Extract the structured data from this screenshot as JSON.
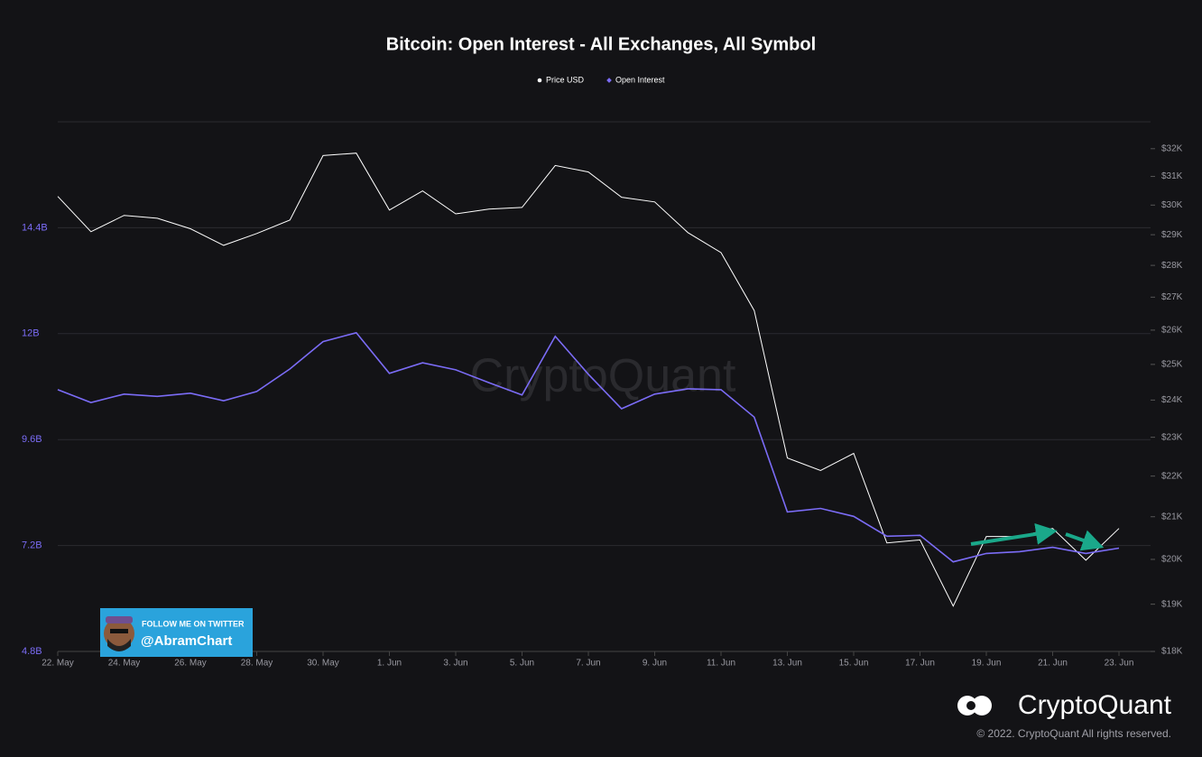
{
  "chart_data": {
    "type": "line",
    "title": "Bitcoin: Open Interest - All Exchanges, All Symbol",
    "categories": [
      "22. May",
      null,
      "24. May",
      null,
      "26. May",
      null,
      "28. May",
      null,
      "30. May",
      null,
      "1. Jun",
      null,
      "3. Jun",
      null,
      "5. Jun",
      null,
      "7. Jun",
      null,
      "9. Jun",
      null,
      "11. Jun",
      null,
      "13. Jun",
      null,
      "15. Jun",
      null,
      "17. Jun",
      null,
      "19. Jun",
      null,
      "21. Jun",
      null,
      "23. Jun"
    ],
    "series": [
      {
        "name": "Price USD",
        "color": "#ffffff",
        "axis": "y2",
        "marker": "circle",
        "values": [
          30300,
          29100,
          29650,
          29550,
          29200,
          28650,
          29040,
          29490,
          31750,
          31840,
          29830,
          30490,
          29700,
          29860,
          29920,
          31390,
          31160,
          30270,
          30110,
          29070,
          28410,
          26590,
          22460,
          22140,
          22580,
          20380,
          20450,
          18960,
          20530,
          20530,
          20720,
          19980,
          20720
        ]
      },
      {
        "name": "Open Interest",
        "color": "#7b6cf6",
        "marker": "diamond",
        "values": [
          10.73,
          10.44,
          10.63,
          10.58,
          10.65,
          10.48,
          10.69,
          11.2,
          11.82,
          12.02,
          11.1,
          11.34,
          11.18,
          10.89,
          10.61,
          11.94,
          11.08,
          10.3,
          10.63,
          10.75,
          10.73,
          10.11,
          7.96,
          8.04,
          7.86,
          7.41,
          7.43,
          6.83,
          7.02,
          7.06,
          7.16,
          7.02,
          7.14
        ]
      }
    ],
    "ylim": [
      4.8,
      16.8
    ],
    "yticks": [
      {
        "value": 4.8,
        "label": "4.8B"
      },
      {
        "value": 7.2,
        "label": "7.2B"
      },
      {
        "value": 9.6,
        "label": "9.6B"
      },
      {
        "value": 12,
        "label": "12B"
      },
      {
        "value": 14.4,
        "label": "14.4B"
      }
    ],
    "y2lim": [
      18000,
      33000
    ],
    "y2log": true,
    "y2ticks": [
      {
        "value": 18000,
        "label": "$18K"
      },
      {
        "value": 19000,
        "label": "$19K"
      },
      {
        "value": 20000,
        "label": "$20K"
      },
      {
        "value": 21000,
        "label": "$21K"
      },
      {
        "value": 22000,
        "label": "$22K"
      },
      {
        "value": 23000,
        "label": "$23K"
      },
      {
        "value": 24000,
        "label": "$24K"
      },
      {
        "value": 25000,
        "label": "$25K"
      },
      {
        "value": 26000,
        "label": "$26K"
      },
      {
        "value": 27000,
        "label": "$27K"
      },
      {
        "value": 28000,
        "label": "$28K"
      },
      {
        "value": 29000,
        "label": "$29K"
      },
      {
        "value": 30000,
        "label": "$30K"
      },
      {
        "value": 31000,
        "label": "$31K"
      },
      {
        "value": 32000,
        "label": "$32K"
      }
    ],
    "grid": true,
    "legend": "top",
    "watermark": "CryptoQuant",
    "brand": "CryptoQuant",
    "copyright": "© 2022. CryptoQuant All rights reserved.",
    "badge": {
      "line1": "FOLLOW ME ON TWITTER",
      "line2": "@AbramChart"
    }
  }
}
